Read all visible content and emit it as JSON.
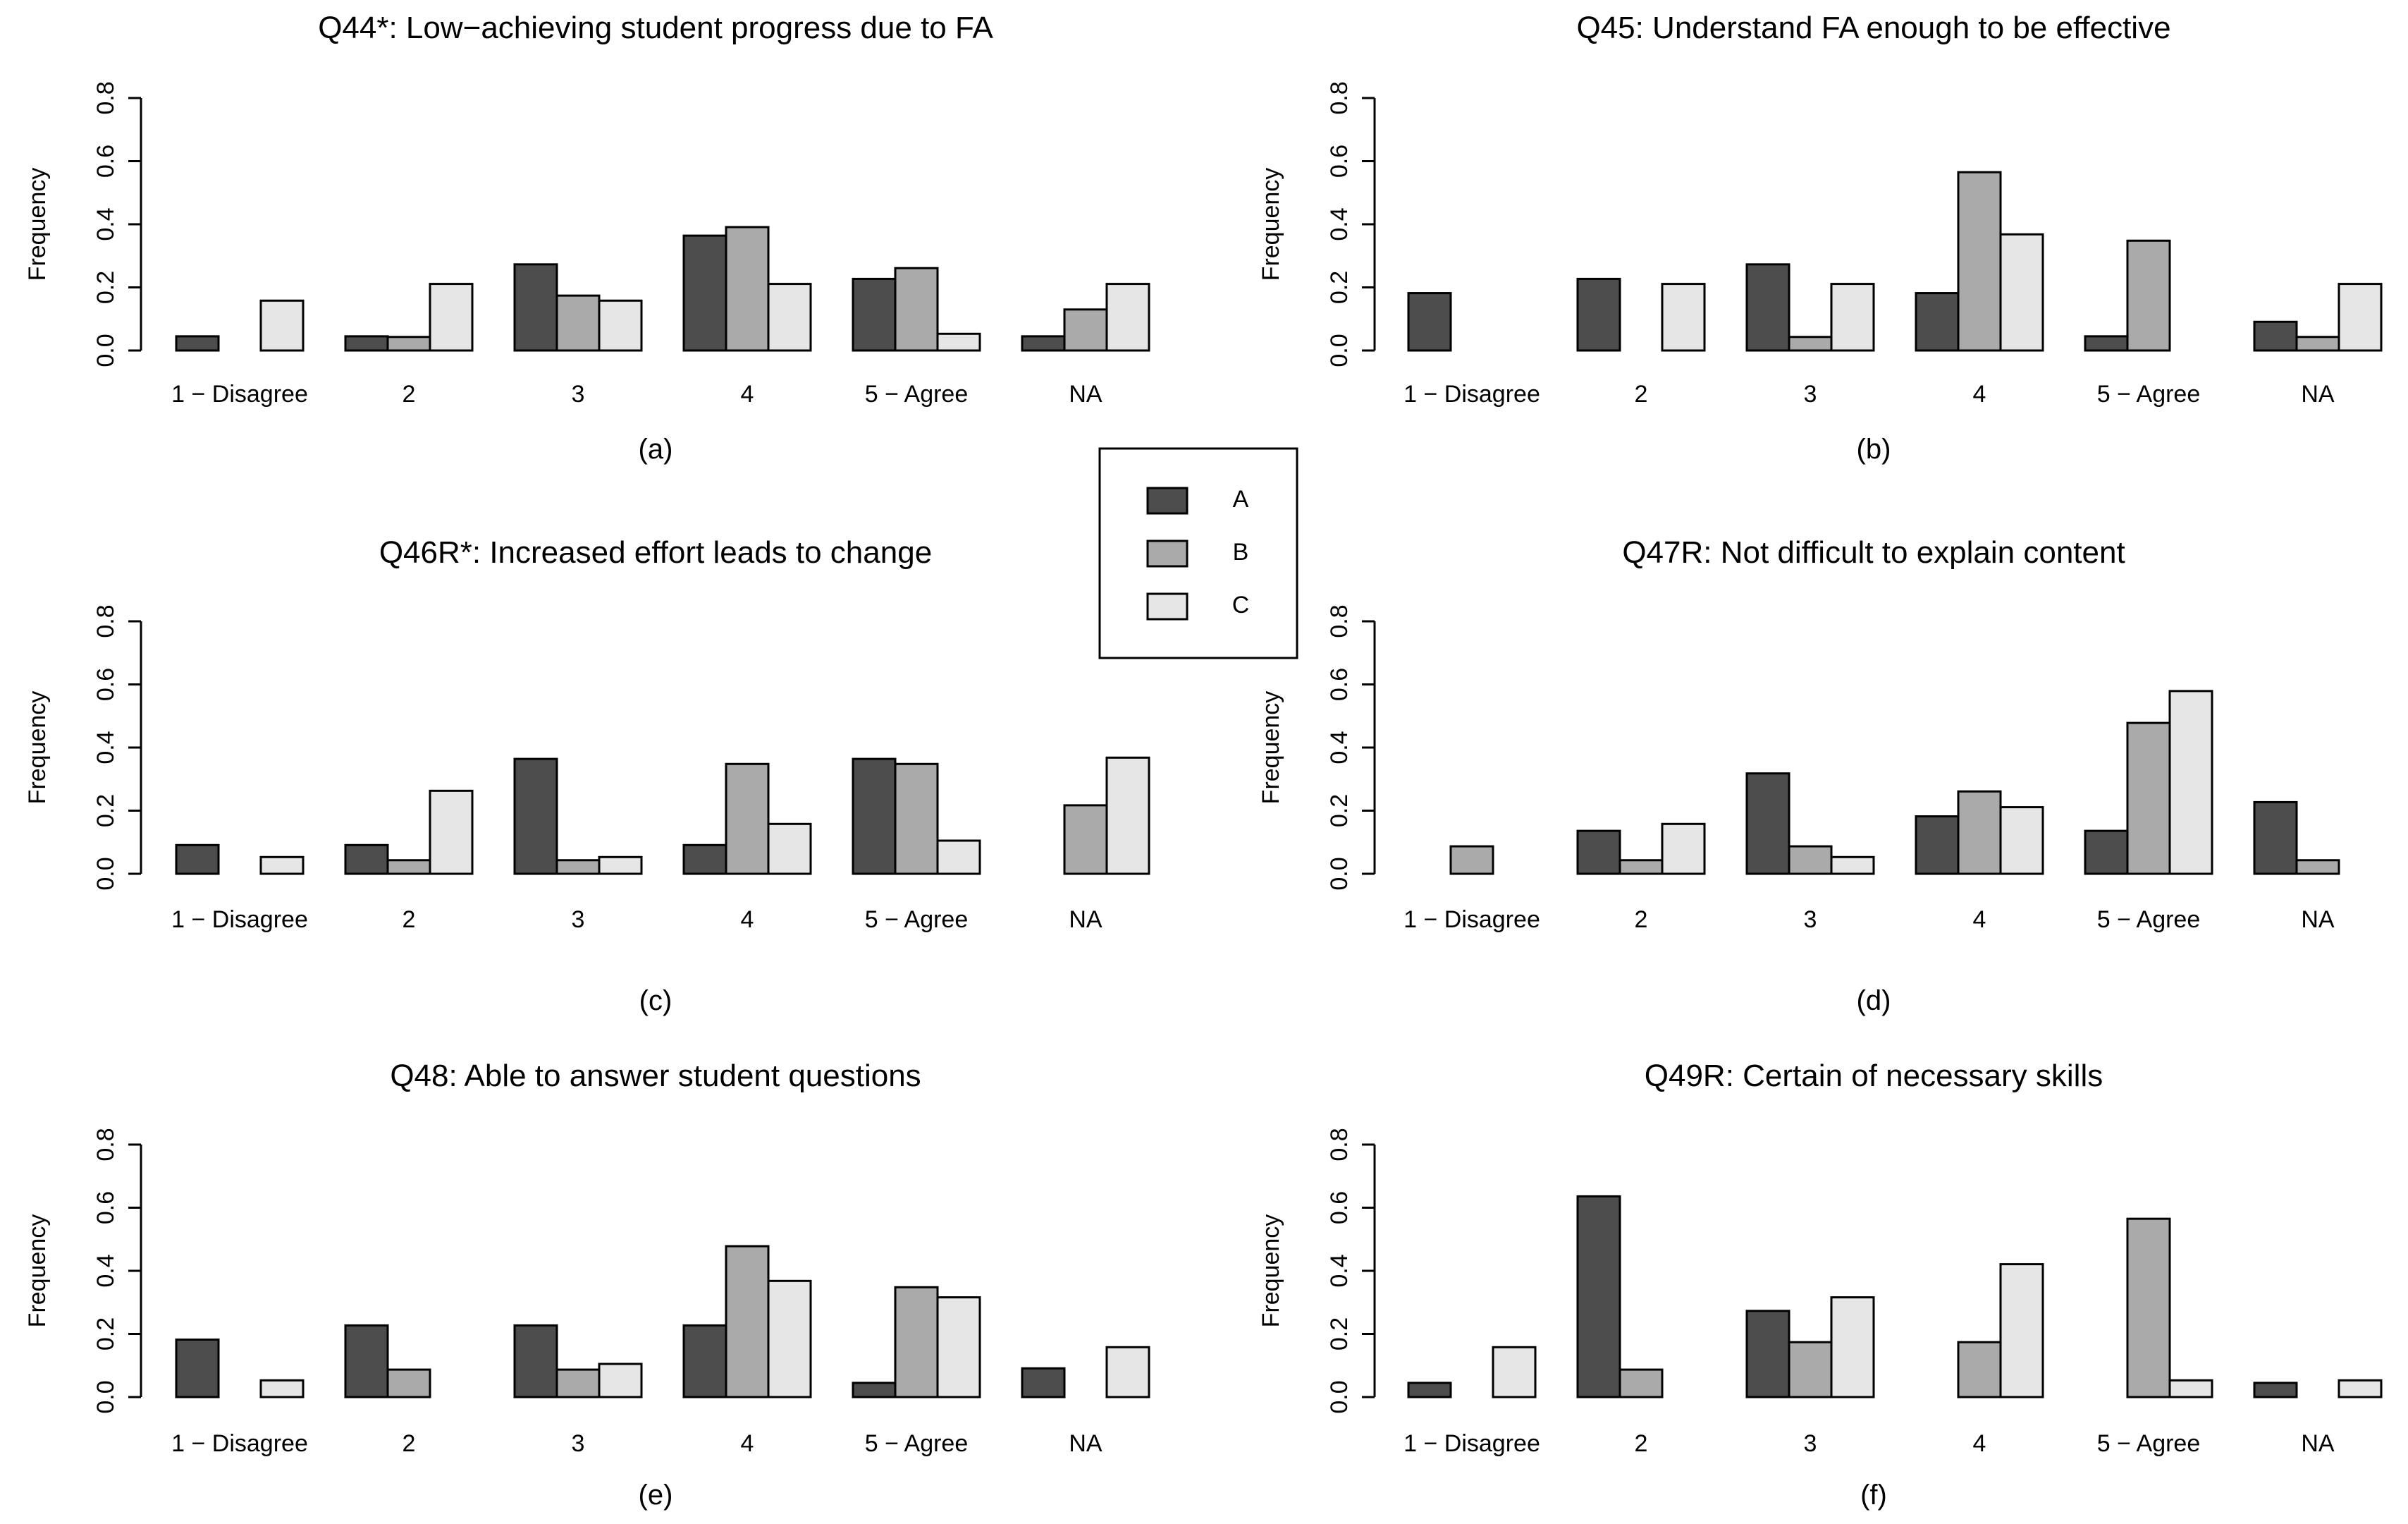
{
  "chart_data": [
    {
      "type": "bar",
      "title": "Q44*: Low−achieving student progress due to FA",
      "panel_label": "(a)",
      "xlabel": "",
      "ylabel": "Frequency",
      "ylim": [
        0,
        0.8
      ],
      "yticks": [
        "0.0",
        "0.2",
        "0.4",
        "0.6",
        "0.8"
      ],
      "categories": [
        "1 − Disagree",
        "2",
        "3",
        "4",
        "5 − Agree",
        "NA"
      ],
      "series": [
        {
          "name": "A",
          "values": [
            0.045,
            0.045,
            0.273,
            0.364,
            0.227,
            0.045
          ]
        },
        {
          "name": "B",
          "values": [
            0.0,
            0.043,
            0.174,
            0.391,
            0.261,
            0.13
          ]
        },
        {
          "name": "C",
          "values": [
            0.158,
            0.211,
            0.158,
            0.211,
            0.053,
            0.211
          ]
        }
      ]
    },
    {
      "type": "bar",
      "title": "Q45: Understand FA enough to be effective",
      "panel_label": "(b)",
      "xlabel": "",
      "ylabel": "Frequency",
      "ylim": [
        0,
        0.8
      ],
      "yticks": [
        "0.0",
        "0.2",
        "0.4",
        "0.6",
        "0.8"
      ],
      "categories": [
        "1 − Disagree",
        "2",
        "3",
        "4",
        "5 − Agree",
        "NA"
      ],
      "series": [
        {
          "name": "A",
          "values": [
            0.182,
            0.227,
            0.273,
            0.182,
            0.045,
            0.091
          ]
        },
        {
          "name": "B",
          "values": [
            0.0,
            0.0,
            0.043,
            0.565,
            0.348,
            0.043
          ]
        },
        {
          "name": "C",
          "values": [
            0.0,
            0.211,
            0.211,
            0.368,
            0.0,
            0.211
          ]
        }
      ]
    },
    {
      "type": "bar",
      "title": "Q46R*: Increased effort leads to change",
      "panel_label": "(c)",
      "xlabel": "",
      "ylabel": "Frequency",
      "ylim": [
        0,
        0.8
      ],
      "yticks": [
        "0.0",
        "0.2",
        "0.4",
        "0.6",
        "0.8"
      ],
      "categories": [
        "1 − Disagree",
        "2",
        "3",
        "4",
        "5 − Agree",
        "NA"
      ],
      "series": [
        {
          "name": "A",
          "values": [
            0.091,
            0.091,
            0.364,
            0.091,
            0.364,
            0.0
          ]
        },
        {
          "name": "B",
          "values": [
            0.0,
            0.043,
            0.043,
            0.348,
            0.348,
            0.217
          ]
        },
        {
          "name": "C",
          "values": [
            0.053,
            0.263,
            0.053,
            0.158,
            0.105,
            0.368
          ]
        }
      ]
    },
    {
      "type": "bar",
      "title": "Q47R: Not difficult to explain content",
      "panel_label": "(d)",
      "xlabel": "",
      "ylabel": "Frequency",
      "ylim": [
        0,
        0.8
      ],
      "yticks": [
        "0.0",
        "0.2",
        "0.4",
        "0.6",
        "0.8"
      ],
      "categories": [
        "1 − Disagree",
        "2",
        "3",
        "4",
        "5 − Agree",
        "NA"
      ],
      "series": [
        {
          "name": "A",
          "values": [
            0.0,
            0.136,
            0.318,
            0.182,
            0.136,
            0.227
          ]
        },
        {
          "name": "B",
          "values": [
            0.087,
            0.043,
            0.087,
            0.261,
            0.478,
            0.043
          ]
        },
        {
          "name": "C",
          "values": [
            0.0,
            0.158,
            0.053,
            0.211,
            0.579,
            0.0
          ]
        }
      ]
    },
    {
      "type": "bar",
      "title": "Q48: Able to answer student questions",
      "panel_label": "(e)",
      "xlabel": "",
      "ylabel": "Frequency",
      "ylim": [
        0,
        0.8
      ],
      "yticks": [
        "0.0",
        "0.2",
        "0.4",
        "0.6",
        "0.8"
      ],
      "categories": [
        "1 − Disagree",
        "2",
        "3",
        "4",
        "5 − Agree",
        "NA"
      ],
      "series": [
        {
          "name": "A",
          "values": [
            0.182,
            0.227,
            0.227,
            0.227,
            0.045,
            0.091
          ]
        },
        {
          "name": "B",
          "values": [
            0.0,
            0.087,
            0.087,
            0.478,
            0.348,
            0.0
          ]
        },
        {
          "name": "C",
          "values": [
            0.053,
            0.0,
            0.105,
            0.368,
            0.316,
            0.158
          ]
        }
      ]
    },
    {
      "type": "bar",
      "title": "Q49R: Certain of necessary skills",
      "panel_label": "(f)",
      "xlabel": "",
      "ylabel": "Frequency",
      "ylim": [
        0,
        0.8
      ],
      "yticks": [
        "0.0",
        "0.2",
        "0.4",
        "0.6",
        "0.8"
      ],
      "categories": [
        "1 − Disagree",
        "2",
        "3",
        "4",
        "5 − Agree",
        "NA"
      ],
      "series": [
        {
          "name": "A",
          "values": [
            0.045,
            0.636,
            0.273,
            0.0,
            0.0,
            0.045
          ]
        },
        {
          "name": "B",
          "values": [
            0.0,
            0.087,
            0.174,
            0.174,
            0.565,
            0.0
          ]
        },
        {
          "name": "C",
          "values": [
            0.158,
            0.0,
            0.316,
            0.421,
            0.053,
            0.053
          ]
        }
      ]
    }
  ],
  "legend": {
    "position": "center",
    "entries": [
      {
        "label": "A",
        "color": "#4d4d4d"
      },
      {
        "label": "B",
        "color": "#aaaaaa"
      },
      {
        "label": "C",
        "color": "#e6e6e6"
      }
    ]
  },
  "series_colors": [
    "#4d4d4d",
    "#aaaaaa",
    "#e6e6e6"
  ]
}
